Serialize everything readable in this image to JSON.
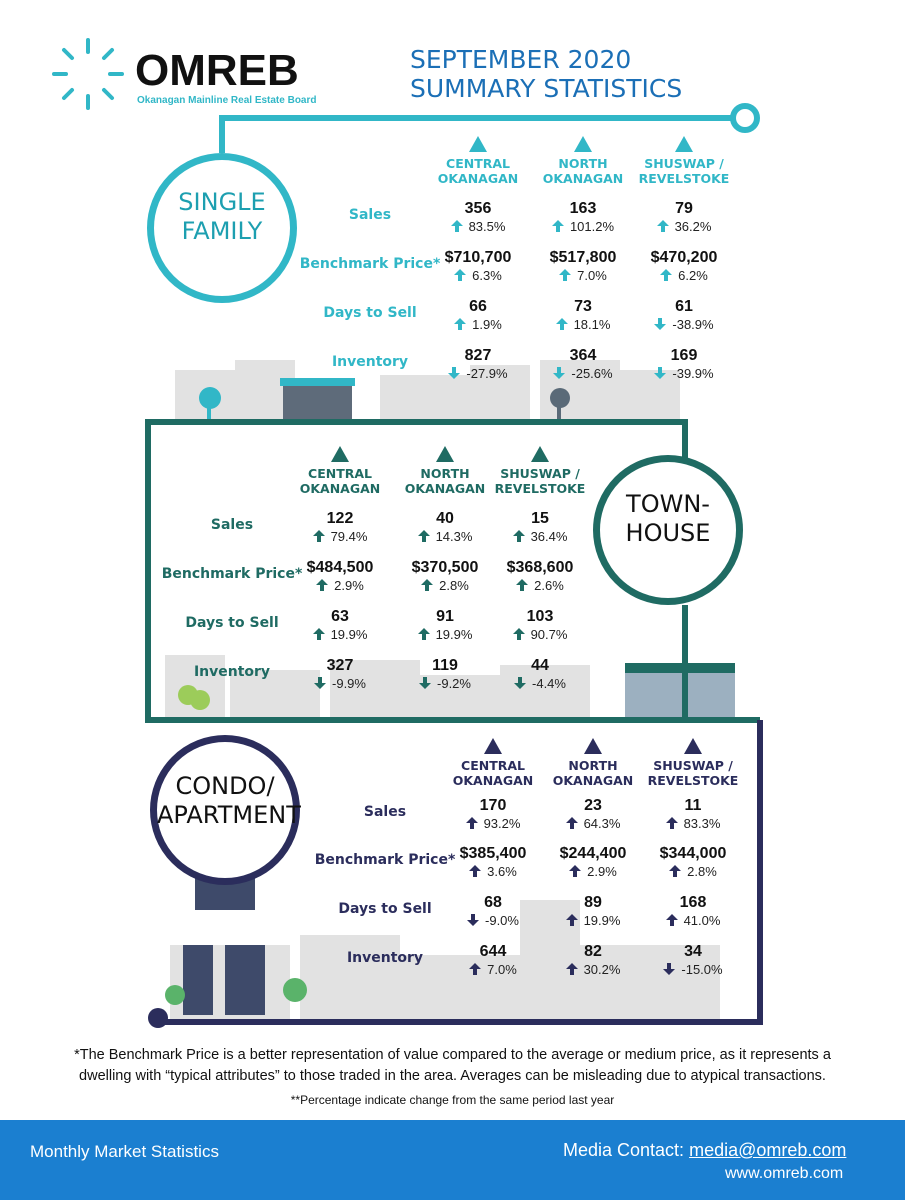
{
  "header": {
    "logo": "OMREB",
    "logo_subtitle": "Okanagan Mainline Real Estate Board",
    "title": "SEPTEMBER 2020 SUMMARY STATISTICS"
  },
  "sections": [
    {
      "label": [
        "SINGLE",
        "FAMILY"
      ],
      "regions": [
        [
          "CENTRAL",
          "OKANAGAN"
        ],
        [
          "NORTH",
          "OKANAGAN"
        ],
        [
          "SHUSWAP /",
          "REVELSTOKE"
        ]
      ],
      "rows": [
        {
          "metric": "Sales",
          "cells": [
            {
              "value": "356",
              "change": "83.5%"
            },
            {
              "value": "163",
              "change": "101.2%"
            },
            {
              "value": "79",
              "change": "36.2%"
            }
          ]
        },
        {
          "metric": "Benchmark Price*",
          "cells": [
            {
              "value": "$710,700",
              "change": "6.3%"
            },
            {
              "value": "$517,800",
              "change": "7.0%"
            },
            {
              "value": "$470,200",
              "change": "6.2%"
            }
          ]
        },
        {
          "metric": "Days to Sell",
          "cells": [
            {
              "value": "66",
              "change": "1.9%"
            },
            {
              "value": "73",
              "change": "18.1%"
            },
            {
              "value": "61",
              "change": "-38.9%"
            }
          ]
        },
        {
          "metric": "Inventory",
          "cells": [
            {
              "value": "827",
              "change": "-27.9%"
            },
            {
              "value": "364",
              "change": "-25.6%"
            },
            {
              "value": "169",
              "change": "-39.9%"
            }
          ]
        }
      ]
    },
    {
      "label": [
        "TOWN-",
        "HOUSE"
      ],
      "regions": [
        [
          "CENTRAL",
          "OKANAGAN"
        ],
        [
          "NORTH",
          "OKANAGAN"
        ],
        [
          "SHUSWAP /",
          "REVELSTOKE"
        ]
      ],
      "rows": [
        {
          "metric": "Sales",
          "cells": [
            {
              "value": "122",
              "change": "79.4%"
            },
            {
              "value": "40",
              "change": "14.3%"
            },
            {
              "value": "15",
              "change": "36.4%"
            }
          ]
        },
        {
          "metric": "Benchmark Price*",
          "cells": [
            {
              "value": "$484,500",
              "change": "2.9%"
            },
            {
              "value": "$370,500",
              "change": "2.8%"
            },
            {
              "value": "$368,600",
              "change": "2.6%"
            }
          ]
        },
        {
          "metric": "Days to Sell",
          "cells": [
            {
              "value": "63",
              "change": "19.9%"
            },
            {
              "value": "91",
              "change": "19.9%"
            },
            {
              "value": "103",
              "change": "90.7%"
            }
          ]
        },
        {
          "metric": "Inventory",
          "cells": [
            {
              "value": "327",
              "change": "-9.9%"
            },
            {
              "value": "119",
              "change": "-9.2%"
            },
            {
              "value": "44",
              "change": "-4.4%"
            }
          ]
        }
      ]
    },
    {
      "label": [
        "CONDO/",
        "APARTMENT"
      ],
      "regions": [
        [
          "CENTRAL",
          "OKANAGAN"
        ],
        [
          "NORTH",
          "OKANAGAN"
        ],
        [
          "SHUSWAP /",
          "REVELSTOKE"
        ]
      ],
      "rows": [
        {
          "metric": "Sales",
          "cells": [
            {
              "value": "170",
              "change": "93.2%"
            },
            {
              "value": "23",
              "change": "64.3%"
            },
            {
              "value": "11",
              "change": "83.3%"
            }
          ]
        },
        {
          "metric": "Benchmark Price*",
          "cells": [
            {
              "value": "$385,400",
              "change": "3.6%"
            },
            {
              "value": "$244,400",
              "change": "2.9%"
            },
            {
              "value": "$344,000",
              "change": "2.8%"
            }
          ]
        },
        {
          "metric": "Days to Sell",
          "cells": [
            {
              "value": "68",
              "change": "-9.0%"
            },
            {
              "value": "89",
              "change": "19.9%"
            },
            {
              "value": "168",
              "change": "41.0%"
            }
          ]
        },
        {
          "metric": "Inventory",
          "cells": [
            {
              "value": "644",
              "change": "7.0%"
            },
            {
              "value": "82",
              "change": "30.2%"
            },
            {
              "value": "34",
              "change": "-15.0%"
            }
          ]
        }
      ]
    }
  ],
  "footnotes": [
    "*The Benchmark Price is a better representation of value compared to the average or medium price, as it represents a dwelling with “typical attributes” to those traded in the area. Averages can be misleading due to atypical transactions.",
    "**Percentage indicate change from the same period last year"
  ],
  "footer": {
    "left": "Monthly Market Statistics",
    "contact_label": "Media Contact:",
    "contact_email": "media@omreb.com",
    "website": "www.omreb.com"
  }
}
